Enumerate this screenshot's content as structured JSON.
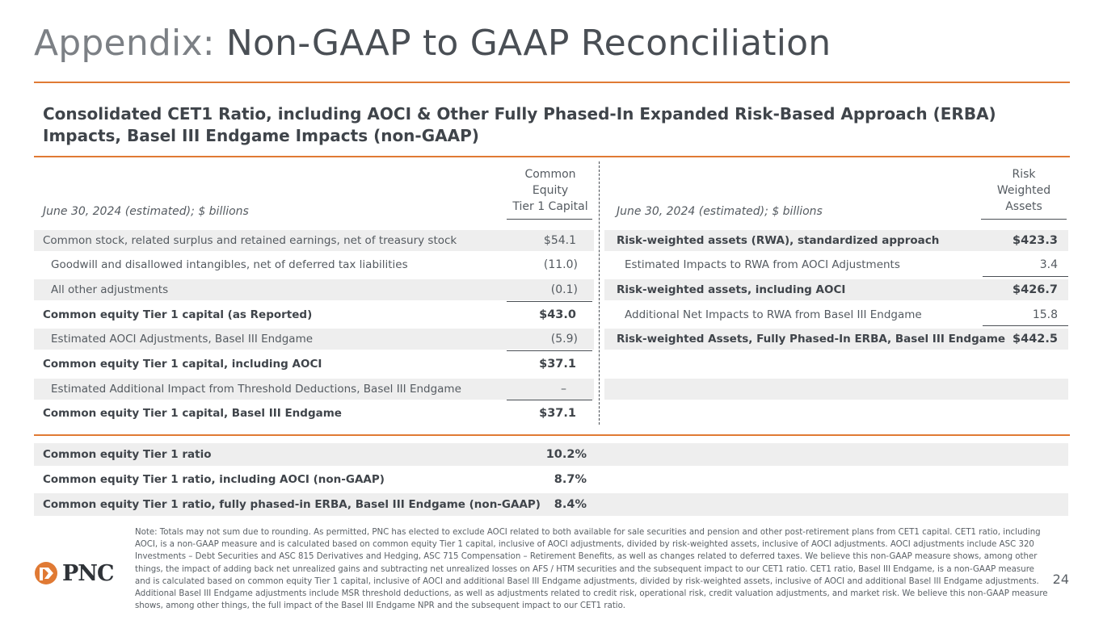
{
  "header": {
    "title_lead": "Appendix:",
    "title_rest": "Non-GAAP to GAAP Reconciliation"
  },
  "subtitle": "Consolidated CET1 Ratio, including AOCI & Other Fully Phased-In Expanded Risk-Based Approach (ERBA) Impacts, Basel III Endgame Impacts (non-GAAP)",
  "left_table": {
    "period_label": "June 30, 2024 (estimated); $ billions",
    "col_header_lines": [
      "Common",
      "Equity",
      "Tier 1 Capital"
    ],
    "rows": [
      {
        "label": "Common stock, related surplus and retained earnings, net of treasury stock",
        "value": "$54.1"
      },
      {
        "label": "Goodwill and disallowed intangibles, net of deferred tax liabilities",
        "value": "(11.0)"
      },
      {
        "label": "All other adjustments",
        "value": "(0.1)"
      },
      {
        "label": "Common equity Tier 1 capital (as Reported)",
        "value": "$43.0"
      },
      {
        "label": "Estimated AOCI Adjustments, Basel III Endgame",
        "value": "(5.9)"
      },
      {
        "label": "Common equity Tier 1 capital, including AOCI",
        "value": "$37.1"
      },
      {
        "label": "Estimated Additional Impact from Threshold Deductions, Basel III Endgame",
        "value": "–"
      },
      {
        "label": "Common equity Tier 1 capital, Basel III Endgame",
        "value": "$37.1"
      }
    ]
  },
  "right_table": {
    "period_label": "June 30, 2024 (estimated); $ billions",
    "col_header_lines": [
      "Risk",
      "Weighted",
      "Assets"
    ],
    "rows": [
      {
        "label": "Risk-weighted assets (RWA), standardized approach",
        "value": "$423.3"
      },
      {
        "label": "Estimated Impacts to RWA from AOCI Adjustments",
        "value": "3.4"
      },
      {
        "label": "Risk-weighted assets, including AOCI",
        "value": "$426.7"
      },
      {
        "label": "Additional Net Impacts to RWA from Basel III Endgame",
        "value": "15.8"
      },
      {
        "label": "Risk-weighted Assets, Fully Phased-In ERBA, Basel III Endgame",
        "value": "$442.5"
      }
    ]
  },
  "ratios": [
    {
      "label": "Common equity Tier 1 ratio",
      "value": "10.2%"
    },
    {
      "label": "Common equity Tier 1 ratio, including AOCI (non-GAAP)",
      "value": "8.7%"
    },
    {
      "label": "Common equity Tier 1 ratio, fully phased-in ERBA, Basel III Endgame (non-GAAP)",
      "value": "8.4%"
    }
  ],
  "footnote": "Note: Totals may not sum due to rounding. As permitted, PNC has elected to exclude AOCI related to both available for sale securities and pension and other post-retirement plans from CET1 capital. CET1 ratio, including AOCI, is a non-GAAP measure and is calculated based on common equity Tier 1 capital, inclusive of AOCI adjustments, divided by risk-weighted assets, inclusive of AOCI adjustments. AOCI adjustments include ASC 320 Investments – Debt Securities and ASC 815 Derivatives and Hedging, ASC 715 Compensation – Retirement Benefits, as well as changes related to deferred taxes. We believe this non-GAAP measure shows, among other things, the impact of adding back net unrealized gains and subtracting net unrealized losses on AFS / HTM securities and the subsequent impact to our CET1 ratio. CET1 ratio, Basel III Endgame, is a non-GAAP measure and is calculated based on common equity Tier 1 capital, inclusive of AOCI and additional Basel III Endgame adjustments, divided by risk-weighted assets, inclusive of AOCI and additional Basel III Endgame adjustments. Additional Basel III Endgame adjustments include MSR threshold deductions, as well as adjustments related to credit risk, operational risk, credit valuation adjustments, and market risk. We believe this non-GAAP measure shows, among other things, the full impact of the Basel III Endgame NPR and the subsequent impact to our CET1 ratio.",
  "logo": {
    "wordmark": "PNC",
    "icon": "pnc-logo-icon",
    "color": "#e07a34"
  },
  "page_number": "24",
  "colors": {
    "accent": "#e07a34",
    "shade": "#eeeeee",
    "text": "#4a5057"
  }
}
